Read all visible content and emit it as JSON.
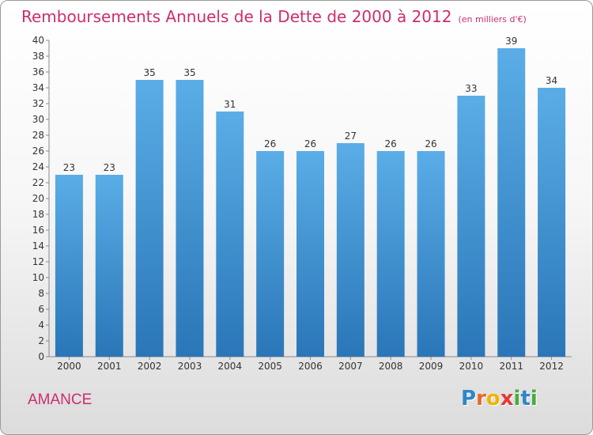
{
  "title": {
    "main": "Remboursements Annuels de la Dette de 2000 à 2012",
    "unit": "(en milliers d'€)"
  },
  "commune": "AMANCE",
  "logo": {
    "text": "Proxiti",
    "letter_colors": [
      "#2f86c9",
      "#e8662a",
      "#f0b400",
      "#e23b36",
      "#4aaa3c",
      "#2f86c9",
      "#4aaa3c"
    ]
  },
  "colors": {
    "bar_top": "#5aade6",
    "bar_bottom": "#2a76b8",
    "text": "#333333",
    "accent": "#cc2d6e"
  },
  "chart_data": {
    "type": "bar",
    "categories": [
      "2000",
      "2001",
      "2002",
      "2003",
      "2004",
      "2005",
      "2006",
      "2007",
      "2008",
      "2009",
      "2010",
      "2011",
      "2012"
    ],
    "values": [
      23,
      23,
      35,
      35,
      31,
      26,
      26,
      27,
      26,
      26,
      33,
      39,
      34
    ],
    "ylim": [
      0,
      40
    ],
    "yticks": [
      0,
      2,
      4,
      6,
      8,
      10,
      12,
      14,
      16,
      18,
      20,
      22,
      24,
      26,
      28,
      30,
      32,
      34,
      36,
      38,
      40
    ],
    "grid": false,
    "data_labels": true
  }
}
